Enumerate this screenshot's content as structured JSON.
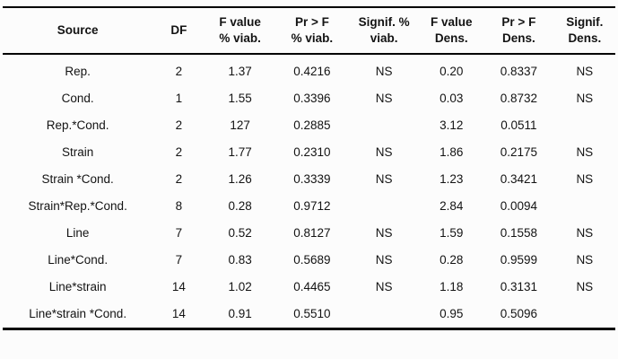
{
  "table": {
    "headers": [
      {
        "id": "source",
        "line1": "Source",
        "line2": ""
      },
      {
        "id": "df",
        "line1": "DF",
        "line2": ""
      },
      {
        "id": "fvalue-viab",
        "line1": "F value",
        "line2": "% viab."
      },
      {
        "id": "prf-viab",
        "line1": "Pr > F",
        "line2": "% viab."
      },
      {
        "id": "signif-viab",
        "line1": "Signif. %",
        "line2": "viab."
      },
      {
        "id": "fvalue-dens",
        "line1": "F value",
        "line2": "Dens."
      },
      {
        "id": "prf-dens",
        "line1": "Pr > F",
        "line2": "Dens."
      },
      {
        "id": "signif-dens",
        "line1": "Signif.",
        "line2": "Dens."
      }
    ],
    "rows": [
      [
        "Rep.",
        "2",
        "1.37",
        "0.4216",
        "NS",
        "0.20",
        "0.8337",
        "NS"
      ],
      [
        "Cond.",
        "1",
        "1.55",
        "0.3396",
        "NS",
        "0.03",
        "0.8732",
        "NS"
      ],
      [
        "Rep.*Cond.",
        "2",
        "127",
        "0.2885",
        "",
        "3.12",
        "0.0511",
        ""
      ],
      [
        "Strain",
        "2",
        "1.77",
        "0.2310",
        "NS",
        "1.86",
        "0.2175",
        "NS"
      ],
      [
        "Strain *Cond.",
        "2",
        "1.26",
        "0.3339",
        "NS",
        "1.23",
        "0.3421",
        "NS"
      ],
      [
        "Strain*Rep.*Cond.",
        "8",
        "0.28",
        "0.9712",
        "",
        "2.84",
        "0.0094",
        ""
      ],
      [
        "Line",
        "7",
        "0.52",
        "0.8127",
        "NS",
        "1.59",
        "0.1558",
        "NS"
      ],
      [
        "Line*Cond.",
        "7",
        "0.83",
        "0.5689",
        "NS",
        "0.28",
        "0.9599",
        "NS"
      ],
      [
        "Line*strain",
        "14",
        "1.02",
        "0.4465",
        "NS",
        "1.18",
        "0.3131",
        "NS"
      ],
      [
        "Line*strain *Cond.",
        "14",
        "0.91",
        "0.5510",
        "",
        "0.95",
        "0.5096",
        ""
      ]
    ],
    "colors": {
      "border": "#000000",
      "text": "#131313",
      "background": "#fcfcfc"
    }
  }
}
